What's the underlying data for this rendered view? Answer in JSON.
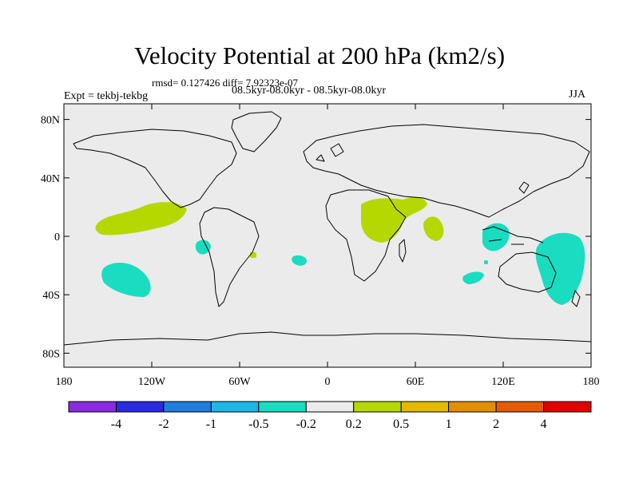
{
  "title": "Velocity Potential at 200 hPa (km2/s)",
  "stats": "rmsd= 0.127426 diff= 7.92323e-07",
  "expt": "Expt = tekbj-tekbg",
  "subtitle": "08.5kyr-08.0kyr - 08.5kyr-08.0kyr",
  "season": "JJA",
  "lat_labels": [
    "80N",
    "40N",
    "0",
    "40S",
    "80S"
  ],
  "lon_labels": [
    "180",
    "120W",
    "60W",
    "0",
    "60E",
    "120E",
    "180"
  ],
  "colorbar": {
    "colors": [
      "#8a2be2",
      "#2a2ae0",
      "#1e7fe0",
      "#1cb6e8",
      "#19dcc1",
      "#ebebeb",
      "#b5d800",
      "#e5b800",
      "#e38d00",
      "#e65a00",
      "#e00000"
    ],
    "labels": [
      "-4",
      "-2",
      "-1",
      "-0.5",
      "-0.2",
      "0.2",
      "0.5",
      "1",
      "2",
      "4"
    ]
  },
  "anomaly_colors": {
    "positive": "#b5d800",
    "negative": "#19dcc1"
  }
}
